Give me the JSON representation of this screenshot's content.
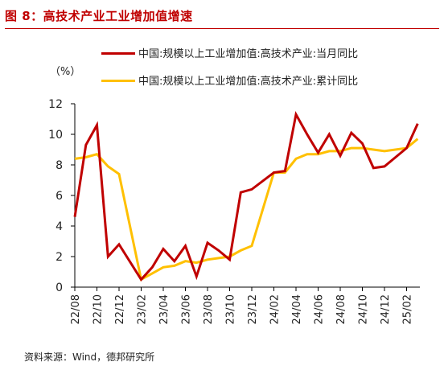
{
  "figure": {
    "title": "图 8：高技术产业工业增加值增速",
    "source": "资料来源：Wind，德邦研究所"
  },
  "colors": {
    "title": "#c00000",
    "series_monthly": "#c00000",
    "series_cumulative": "#ffc000",
    "axis": "#000000"
  },
  "chart_data": {
    "type": "line",
    "unit_label": "（%）",
    "ylim": [
      0,
      12
    ],
    "yticks": [
      0,
      2,
      4,
      6,
      8,
      10,
      12
    ],
    "xtick_labels": [
      "22/08",
      "22/10",
      "22/12",
      "23/02",
      "23/04",
      "23/06",
      "23/08",
      "23/10",
      "23/12",
      "24/02",
      "24/04",
      "24/06",
      "24/08",
      "24/10",
      "24/12",
      "25/02"
    ],
    "x": [
      "22/08",
      "22/09",
      "22/10",
      "22/11",
      "22/12",
      "23/02",
      "23/03",
      "23/04",
      "23/05",
      "23/06",
      "23/07",
      "23/08",
      "23/09",
      "23/10",
      "23/11",
      "23/12",
      "24/02",
      "24/03",
      "24/04",
      "24/05",
      "24/06",
      "24/07",
      "24/08",
      "24/09",
      "24/10",
      "24/11",
      "24/12",
      "25/02",
      "25/03"
    ],
    "series": [
      {
        "name": "中国:规模以上工业增加值:高技术产业:当月同比",
        "values": [
          4.6,
          9.3,
          10.6,
          2.0,
          2.8,
          0.5,
          1.3,
          2.5,
          1.7,
          2.7,
          0.7,
          2.9,
          2.4,
          1.8,
          6.2,
          6.4,
          7.5,
          7.6,
          11.3,
          10.0,
          8.8,
          10.0,
          8.6,
          10.1,
          9.4,
          7.8,
          7.9,
          9.1,
          10.7
        ]
      },
      {
        "name": "中国:规模以上工业增加值:高技术产业:累计同比",
        "values": [
          8.4,
          8.5,
          8.7,
          7.9,
          7.4,
          0.5,
          0.9,
          1.3,
          1.4,
          1.7,
          1.6,
          1.8,
          1.9,
          2.0,
          2.4,
          2.7,
          7.5,
          7.5,
          8.4,
          8.7,
          8.7,
          8.9,
          8.9,
          9.1,
          9.1,
          9.0,
          8.9,
          9.1,
          9.7
        ]
      }
    ],
    "grid": false,
    "legend_position": "top"
  }
}
